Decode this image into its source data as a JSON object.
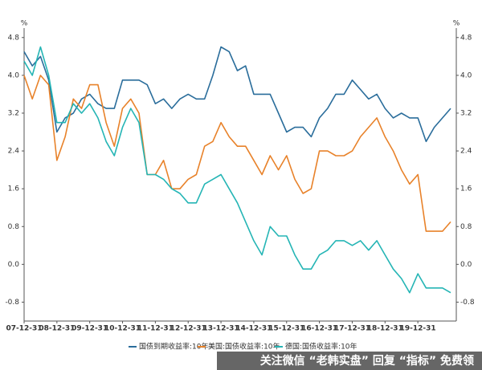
{
  "chart_data": {
    "type": "line",
    "y_label": "%",
    "y2_label": "%",
    "categories": [
      "07-12-31",
      null,
      null,
      null,
      "08-12-31",
      null,
      null,
      null,
      "09-12-31",
      null,
      null,
      null,
      "10-12-31",
      null,
      null,
      null,
      "11-12-31",
      null,
      null,
      null,
      "12-12-31",
      null,
      null,
      null,
      "13-12-31",
      null,
      null,
      null,
      "14-12-31",
      null,
      null,
      null,
      "15-12-31",
      null,
      null,
      null,
      "16-12-31",
      null,
      null,
      null,
      "17-12-31",
      null,
      null,
      null,
      "18-12-31",
      null,
      null,
      null,
      "19-12-31",
      null,
      null,
      null,
      null
    ],
    "series": [
      {
        "name": "国债到期收益率:10年",
        "color": "#2a6d9b",
        "values": [
          4.5,
          4.2,
          4.4,
          3.9,
          2.8,
          3.1,
          3.2,
          3.5,
          3.6,
          3.4,
          3.3,
          3.3,
          3.9,
          3.9,
          3.9,
          3.8,
          3.4,
          3.5,
          3.3,
          3.5,
          3.6,
          3.5,
          3.5,
          4.0,
          4.6,
          4.5,
          4.1,
          4.2,
          3.6,
          3.6,
          3.6,
          3.2,
          2.8,
          2.9,
          2.9,
          2.7,
          3.1,
          3.3,
          3.6,
          3.6,
          3.9,
          3.7,
          3.5,
          3.6,
          3.3,
          3.1,
          3.2,
          3.1,
          3.1,
          2.6,
          2.9,
          3.1,
          3.3
        ]
      },
      {
        "name": "美国:国债收益率:10年",
        "color": "#e8822a",
        "values": [
          4.0,
          3.5,
          4.0,
          3.8,
          2.2,
          2.7,
          3.5,
          3.3,
          3.8,
          3.8,
          3.0,
          2.5,
          3.3,
          3.5,
          3.2,
          1.9,
          1.9,
          2.2,
          1.6,
          1.6,
          1.8,
          1.9,
          2.5,
          2.6,
          3.0,
          2.7,
          2.5,
          2.5,
          2.2,
          1.9,
          2.3,
          2.0,
          2.3,
          1.8,
          1.5,
          1.6,
          2.4,
          2.4,
          2.3,
          2.3,
          2.4,
          2.7,
          2.9,
          3.1,
          2.7,
          2.4,
          2.0,
          1.7,
          1.9,
          0.7,
          0.7,
          0.7,
          0.9
        ]
      },
      {
        "name": "德国:国债收益率:10年",
        "color": "#25b5b5",
        "values": [
          4.3,
          4.0,
          4.6,
          4.0,
          3.0,
          3.0,
          3.4,
          3.2,
          3.4,
          3.1,
          2.6,
          2.3,
          2.9,
          3.3,
          3.0,
          1.9,
          1.9,
          1.8,
          1.6,
          1.5,
          1.3,
          1.3,
          1.7,
          1.8,
          1.9,
          1.6,
          1.3,
          0.9,
          0.5,
          0.2,
          0.8,
          0.6,
          0.6,
          0.2,
          -0.1,
          -0.1,
          0.2,
          0.3,
          0.5,
          0.5,
          0.4,
          0.5,
          0.3,
          0.5,
          0.2,
          -0.1,
          -0.3,
          -0.6,
          -0.2,
          -0.5,
          -0.5,
          -0.5,
          -0.6
        ]
      }
    ],
    "ylim": [
      -1.2,
      5.0
    ],
    "yticks": [
      -0.8,
      {
        "value": 0,
        "label": "0.0"
      },
      0.8,
      1.6,
      2.4,
      3.2,
      {
        "value": 4,
        "label": "4.0"
      },
      4.8
    ],
    "y2lim": [
      -1.2,
      5.0
    ],
    "y2ticks": [
      -0.8,
      {
        "value": 0,
        "label": "0.0"
      },
      0.8,
      1.6,
      2.4,
      3.2,
      {
        "value": 4,
        "label": "4.0"
      },
      4.8
    ],
    "grid": false,
    "legend": "bottom"
  },
  "watermark": "关注微信 “老韩实盘” 回复 “指标” 免费领"
}
